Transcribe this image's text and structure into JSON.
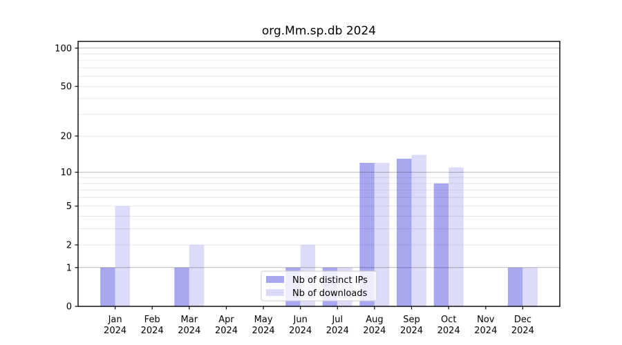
{
  "chart_data": {
    "type": "bar",
    "title": "org.Mm.sp.db 2024",
    "year": "2024",
    "categories": [
      "Jan",
      "Feb",
      "Mar",
      "Apr",
      "May",
      "Jun",
      "Jul",
      "Aug",
      "Sep",
      "Oct",
      "Nov",
      "Dec"
    ],
    "series": [
      {
        "name": "Nb of distinct IPs",
        "color": "#a8a8f0",
        "values": [
          1,
          0,
          1,
          0,
          0,
          1,
          1,
          12,
          13,
          8,
          0,
          1
        ]
      },
      {
        "name": "Nb of downloads",
        "color": "#dcdcf8",
        "values": [
          5,
          0,
          2,
          0,
          0,
          2,
          1,
          12,
          14,
          11,
          0,
          1
        ]
      }
    ],
    "xlabel": "",
    "ylabel": "",
    "yscale": "log1p",
    "ylim": [
      0,
      113
    ],
    "yticks": [
      0,
      1,
      2,
      5,
      10,
      20,
      50,
      100
    ],
    "grid": {
      "on": true,
      "major": [
        1,
        10,
        100
      ],
      "minor": [
        2,
        3,
        4,
        5,
        6,
        7,
        8,
        9,
        20,
        30,
        40,
        50,
        60,
        70,
        80,
        90
      ],
      "major_color": "rgba(0,0,0,0.28)",
      "minor_color": "rgba(0,0,0,0.09)"
    },
    "legend": {
      "position": "lower-center"
    },
    "axis_color": "#000000",
    "legend_border_color": "#cccccc"
  }
}
